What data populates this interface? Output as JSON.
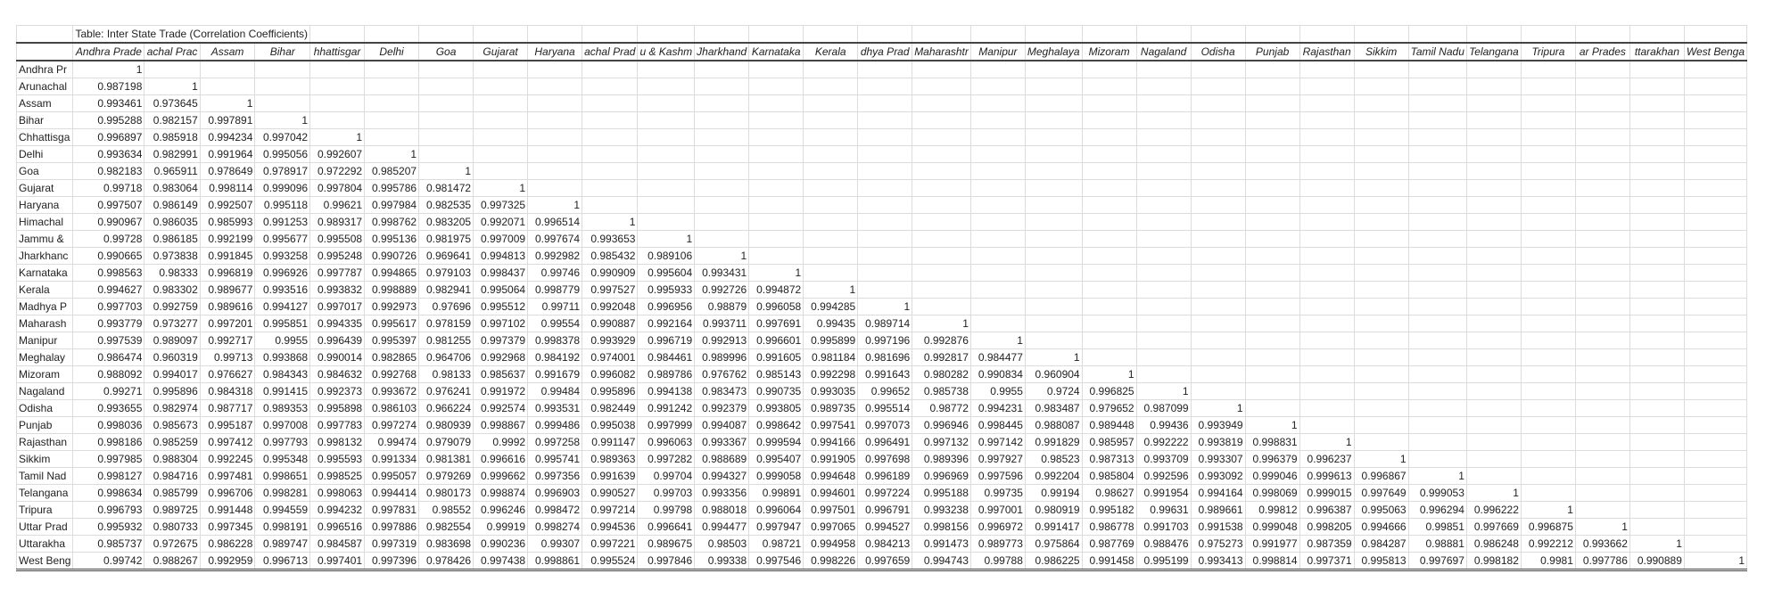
{
  "title": "Table: Inter State Trade (Correlation Coefficients)",
  "column_headers": [
    "Andhra Prade",
    "achal Prac",
    "Assam",
    "Bihar",
    "hhattisgar",
    "Delhi",
    "Goa",
    "Gujarat",
    "Haryana",
    "achal Prad",
    "u & Kashm",
    "Jharkhand",
    "Karnataka",
    "Kerala",
    "dhya Prad",
    "Maharashtr",
    "Manipur",
    "Meghalaya",
    "Mizoram",
    "Nagaland",
    "Odisha",
    "Punjab",
    "Rajasthan",
    "Sikkim",
    "Tamil Nadu",
    "Telangana",
    "Tripura",
    "ar Prades",
    "ttarakhan",
    "West Benga"
  ],
  "rows": [
    {
      "label": "Andhra Pr",
      "values": [
        "1"
      ]
    },
    {
      "label": "Arunachal",
      "values": [
        "0.987198",
        "1"
      ]
    },
    {
      "label": "Assam",
      "values": [
        "0.993461",
        "0.973645",
        "1"
      ]
    },
    {
      "label": "Bihar",
      "values": [
        "0.995288",
        "0.982157",
        "0.997891",
        "1"
      ]
    },
    {
      "label": "Chhattisga",
      "values": [
        "0.996897",
        "0.985918",
        "0.994234",
        "0.997042",
        "1"
      ]
    },
    {
      "label": "Delhi",
      "values": [
        "0.993634",
        "0.982991",
        "0.991964",
        "0.995056",
        "0.992607",
        "1"
      ]
    },
    {
      "label": "Goa",
      "values": [
        "0.982183",
        "0.965911",
        "0.978649",
        "0.978917",
        "0.972292",
        "0.985207",
        "1"
      ]
    },
    {
      "label": "Gujarat",
      "values": [
        "0.99718",
        "0.983064",
        "0.998114",
        "0.999096",
        "0.997804",
        "0.995786",
        "0.981472",
        "1"
      ]
    },
    {
      "label": "Haryana",
      "values": [
        "0.997507",
        "0.986149",
        "0.992507",
        "0.995118",
        "0.99621",
        "0.997984",
        "0.982535",
        "0.997325",
        "1"
      ]
    },
    {
      "label": "Himachal",
      "values": [
        "0.990967",
        "0.986035",
        "0.985993",
        "0.991253",
        "0.989317",
        "0.998762",
        "0.983205",
        "0.992071",
        "0.996514",
        "1"
      ]
    },
    {
      "label": "Jammu &",
      "values": [
        "0.99728",
        "0.986185",
        "0.992199",
        "0.995677",
        "0.995508",
        "0.995136",
        "0.981975",
        "0.997009",
        "0.997674",
        "0.993653",
        "1"
      ]
    },
    {
      "label": "Jharkhanc",
      "values": [
        "0.990665",
        "0.973838",
        "0.991845",
        "0.993258",
        "0.995248",
        "0.990726",
        "0.969641",
        "0.994813",
        "0.992982",
        "0.985432",
        "0.989106",
        "1"
      ]
    },
    {
      "label": "Karnataka",
      "values": [
        "0.998563",
        "0.98333",
        "0.996819",
        "0.996926",
        "0.997787",
        "0.994865",
        "0.979103",
        "0.998437",
        "0.99746",
        "0.990909",
        "0.995604",
        "0.993431",
        "1"
      ]
    },
    {
      "label": "Kerala",
      "values": [
        "0.994627",
        "0.983302",
        "0.989677",
        "0.993516",
        "0.993832",
        "0.998889",
        "0.982941",
        "0.995064",
        "0.998779",
        "0.997527",
        "0.995933",
        "0.992726",
        "0.994872",
        "1"
      ]
    },
    {
      "label": "Madhya P",
      "values": [
        "0.997703",
        "0.992759",
        "0.989616",
        "0.994127",
        "0.997017",
        "0.992973",
        "0.97696",
        "0.995512",
        "0.99711",
        "0.992048",
        "0.996956",
        "0.98879",
        "0.996058",
        "0.994285",
        "1"
      ]
    },
    {
      "label": "Maharash",
      "values": [
        "0.993779",
        "0.973277",
        "0.997201",
        "0.995851",
        "0.994335",
        "0.995617",
        "0.978159",
        "0.997102",
        "0.99554",
        "0.990887",
        "0.992164",
        "0.993711",
        "0.997691",
        "0.99435",
        "0.989714",
        "1"
      ]
    },
    {
      "label": "Manipur",
      "values": [
        "0.997539",
        "0.989097",
        "0.992717",
        "0.9955",
        "0.996439",
        "0.995397",
        "0.981255",
        "0.997379",
        "0.998378",
        "0.993929",
        "0.996719",
        "0.992913",
        "0.996601",
        "0.995899",
        "0.997196",
        "0.992876",
        "1"
      ]
    },
    {
      "label": "Meghalay",
      "values": [
        "0.986474",
        "0.960319",
        "0.99713",
        "0.993868",
        "0.990014",
        "0.982865",
        "0.964706",
        "0.992968",
        "0.984192",
        "0.974001",
        "0.984461",
        "0.989996",
        "0.991605",
        "0.981184",
        "0.981696",
        "0.992817",
        "0.984477",
        "1"
      ]
    },
    {
      "label": "Mizoram",
      "values": [
        "0.988092",
        "0.994017",
        "0.976627",
        "0.984343",
        "0.984632",
        "0.992768",
        "0.98133",
        "0.985637",
        "0.991679",
        "0.996082",
        "0.989786",
        "0.976762",
        "0.985143",
        "0.992298",
        "0.991643",
        "0.980282",
        "0.990834",
        "0.960904",
        "1"
      ]
    },
    {
      "label": "Nagaland",
      "values": [
        "0.99271",
        "0.995896",
        "0.984318",
        "0.991415",
        "0.992373",
        "0.993672",
        "0.976241",
        "0.991972",
        "0.99484",
        "0.995896",
        "0.994138",
        "0.983473",
        "0.990735",
        "0.993035",
        "0.99652",
        "0.985738",
        "0.9955",
        "0.9724",
        "0.996825",
        "1"
      ]
    },
    {
      "label": "Odisha",
      "values": [
        "0.993655",
        "0.982974",
        "0.987717",
        "0.989353",
        "0.995898",
        "0.986103",
        "0.966224",
        "0.992574",
        "0.993531",
        "0.982449",
        "0.991242",
        "0.992379",
        "0.993805",
        "0.989735",
        "0.995514",
        "0.98772",
        "0.994231",
        "0.983487",
        "0.979652",
        "0.987099",
        "1"
      ]
    },
    {
      "label": "Punjab",
      "values": [
        "0.998036",
        "0.985673",
        "0.995187",
        "0.997008",
        "0.997783",
        "0.997274",
        "0.980939",
        "0.998867",
        "0.999486",
        "0.995038",
        "0.997999",
        "0.994087",
        "0.998642",
        "0.997541",
        "0.997073",
        "0.996946",
        "0.998445",
        "0.988087",
        "0.989448",
        "0.99436",
        "0.993949",
        "1"
      ]
    },
    {
      "label": "Rajasthan",
      "values": [
        "0.998186",
        "0.985259",
        "0.997412",
        "0.997793",
        "0.998132",
        "0.99474",
        "0.979079",
        "0.9992",
        "0.997258",
        "0.991147",
        "0.996063",
        "0.993367",
        "0.999594",
        "0.994166",
        "0.996491",
        "0.997132",
        "0.997142",
        "0.991829",
        "0.985957",
        "0.992222",
        "0.993819",
        "0.998831",
        "1"
      ]
    },
    {
      "label": "Sikkim",
      "values": [
        "0.997985",
        "0.988304",
        "0.992245",
        "0.995348",
        "0.995593",
        "0.991334",
        "0.981381",
        "0.996616",
        "0.995741",
        "0.989363",
        "0.997282",
        "0.988689",
        "0.995407",
        "0.991905",
        "0.997698",
        "0.989396",
        "0.997927",
        "0.98523",
        "0.987313",
        "0.993709",
        "0.993307",
        "0.996379",
        "0.996237",
        "1"
      ]
    },
    {
      "label": "Tamil Nad",
      "values": [
        "0.998127",
        "0.984716",
        "0.997481",
        "0.998651",
        "0.998525",
        "0.995057",
        "0.979269",
        "0.999662",
        "0.997356",
        "0.991639",
        "0.99704",
        "0.994327",
        "0.999058",
        "0.994648",
        "0.996189",
        "0.996969",
        "0.997596",
        "0.992204",
        "0.985804",
        "0.992596",
        "0.993092",
        "0.999046",
        "0.999613",
        "0.996867",
        "1"
      ]
    },
    {
      "label": "Telangana",
      "values": [
        "0.998634",
        "0.985799",
        "0.996706",
        "0.998281",
        "0.998063",
        "0.994414",
        "0.980173",
        "0.998874",
        "0.996903",
        "0.990527",
        "0.99703",
        "0.993356",
        "0.99891",
        "0.994601",
        "0.997224",
        "0.995188",
        "0.99735",
        "0.99194",
        "0.98627",
        "0.991954",
        "0.994164",
        "0.998069",
        "0.999015",
        "0.997649",
        "0.999053",
        "1"
      ]
    },
    {
      "label": "Tripura",
      "values": [
        "0.996793",
        "0.989725",
        "0.991448",
        "0.994559",
        "0.994232",
        "0.997831",
        "0.98552",
        "0.996246",
        "0.998472",
        "0.997214",
        "0.99798",
        "0.988018",
        "0.996064",
        "0.997501",
        "0.996791",
        "0.993238",
        "0.997001",
        "0.980919",
        "0.995182",
        "0.99631",
        "0.989661",
        "0.99812",
        "0.996387",
        "0.995063",
        "0.996294",
        "0.996222",
        "1"
      ]
    },
    {
      "label": "Uttar Prad",
      "values": [
        "0.995932",
        "0.980733",
        "0.997345",
        "0.998191",
        "0.996516",
        "0.997886",
        "0.982554",
        "0.99919",
        "0.998274",
        "0.994536",
        "0.996641",
        "0.994477",
        "0.997947",
        "0.997065",
        "0.994527",
        "0.998156",
        "0.996972",
        "0.991417",
        "0.986778",
        "0.991703",
        "0.991538",
        "0.999048",
        "0.998205",
        "0.994666",
        "0.99851",
        "0.997669",
        "0.996875",
        "1"
      ]
    },
    {
      "label": "Uttarakha",
      "values": [
        "0.985737",
        "0.972675",
        "0.986228",
        "0.989747",
        "0.984587",
        "0.997319",
        "0.983698",
        "0.990236",
        "0.99307",
        "0.997221",
        "0.989675",
        "0.98503",
        "0.98721",
        "0.994958",
        "0.984213",
        "0.991473",
        "0.989773",
        "0.975864",
        "0.987769",
        "0.988476",
        "0.975273",
        "0.991977",
        "0.987359",
        "0.984287",
        "0.98881",
        "0.986248",
        "0.992212",
        "0.993662",
        "1"
      ]
    },
    {
      "label": "West Beng",
      "values": [
        "0.99742",
        "0.988267",
        "0.992959",
        "0.996713",
        "0.997401",
        "0.997396",
        "0.978426",
        "0.997438",
        "0.998861",
        "0.995524",
        "0.997846",
        "0.99338",
        "0.997546",
        "0.998226",
        "0.997659",
        "0.994743",
        "0.99788",
        "0.986225",
        "0.991458",
        "0.995199",
        "0.993413",
        "0.998814",
        "0.997371",
        "0.995813",
        "0.997697",
        "0.998182",
        "0.9981",
        "0.997786",
        "0.990889",
        "1"
      ]
    }
  ]
}
